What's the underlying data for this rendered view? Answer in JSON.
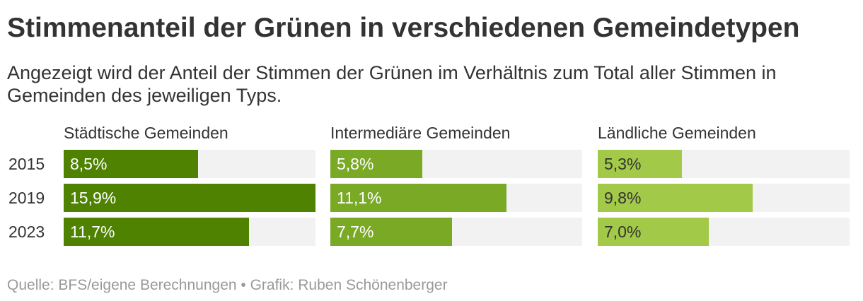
{
  "chart_data": {
    "type": "bar",
    "title": "Stimmenanteil der Grünen in verschiedenen Gemeindetypen",
    "subtitle": "Angezeigt wird der Anteil der Stimmen der Grünen im Verhältnis zum Total aller Stimmen in Gemeinden des jeweiligen Typs.",
    "source": "Quelle: BFS/eigene Berechnungen • Grafik: Ruben Schönenberger",
    "categories": [
      "2015",
      "2019",
      "2023"
    ],
    "xlim": [
      0,
      15.9
    ],
    "track_color": "#f2f2f2",
    "series": [
      {
        "name": "Städtische Gemeinden",
        "values": [
          8.5,
          15.9,
          11.7
        ],
        "labels": [
          "8,5%",
          "15,9%",
          "11,7%"
        ],
        "color": "#4e8200",
        "label_color": "#ffffff"
      },
      {
        "name": "Intermediäre Gemeinden",
        "values": [
          5.8,
          11.1,
          7.7
        ],
        "labels": [
          "5,8%",
          "11,1%",
          "7,7%"
        ],
        "color": "#79a925",
        "label_color": "#ffffff"
      },
      {
        "name": "Ländliche Gemeinden",
        "values": [
          5.3,
          9.8,
          7.0
        ],
        "labels": [
          "5,3%",
          "9,8%",
          "7,0%"
        ],
        "color": "#a3c948",
        "label_color": "#333333"
      }
    ]
  }
}
